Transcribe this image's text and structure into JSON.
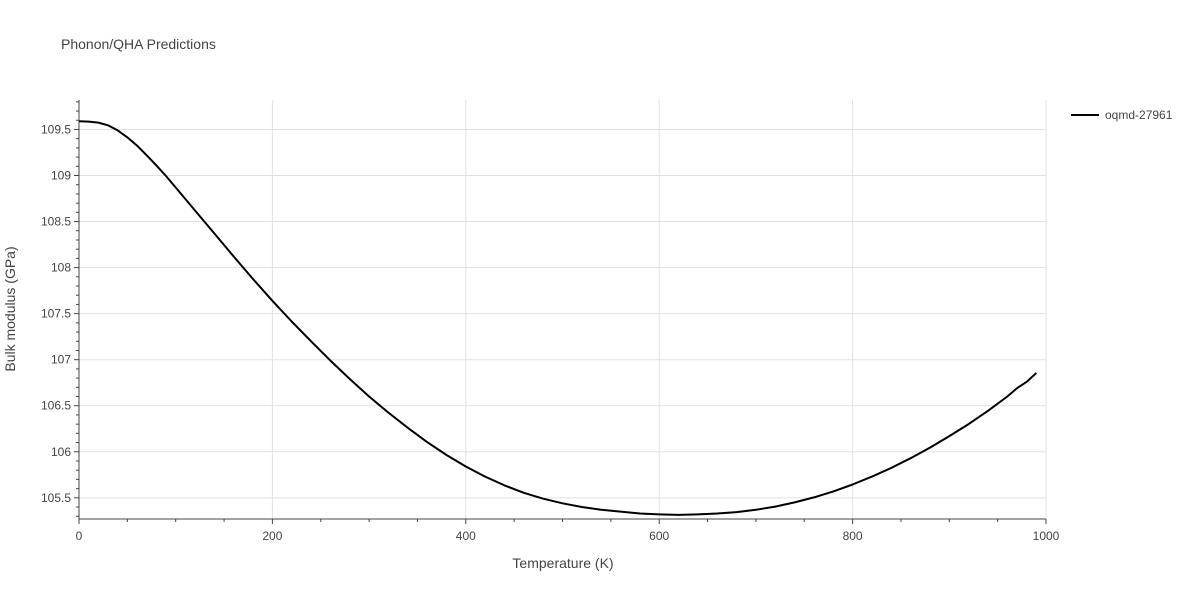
{
  "chart_data": {
    "type": "line",
    "title": "Phonon/QHA Predictions",
    "xlabel": "Temperature (K)",
    "ylabel": "Bulk modulus (GPa)",
    "xlim": [
      0,
      1000
    ],
    "ylim": [
      105.27,
      109.82
    ],
    "xticks": [
      0,
      200,
      400,
      600,
      800,
      1000
    ],
    "xtick_labels": [
      "0",
      "200",
      "400",
      "600",
      "800",
      "1000"
    ],
    "yticks": [
      105.5,
      106,
      106.5,
      107,
      107.5,
      108,
      108.5,
      109,
      109.5
    ],
    "ytick_labels": [
      "105.5",
      "106",
      "106.5",
      "107",
      "107.5",
      "108",
      "108.5",
      "109",
      "109.5"
    ],
    "grid": true,
    "legend_position": "top-right",
    "series": [
      {
        "name": "oqmd-27961",
        "color": "#000000",
        "x": [
          0,
          10,
          20,
          30,
          40,
          50,
          60,
          70,
          80,
          90,
          100,
          120,
          140,
          160,
          180,
          200,
          220,
          240,
          260,
          280,
          300,
          320,
          340,
          360,
          380,
          400,
          420,
          440,
          460,
          480,
          500,
          520,
          540,
          560,
          580,
          600,
          620,
          640,
          660,
          680,
          700,
          720,
          740,
          760,
          780,
          800,
          820,
          840,
          860,
          880,
          900,
          920,
          940,
          960,
          970,
          980,
          990
        ],
        "y": [
          109.59,
          109.585,
          109.575,
          109.545,
          109.49,
          109.415,
          109.325,
          109.22,
          109.11,
          108.995,
          108.87,
          108.62,
          108.37,
          108.12,
          107.875,
          107.64,
          107.415,
          107.2,
          106.99,
          106.79,
          106.6,
          106.425,
          106.26,
          106.105,
          105.965,
          105.84,
          105.73,
          105.635,
          105.555,
          105.49,
          105.44,
          105.4,
          105.37,
          105.35,
          105.33,
          105.32,
          105.315,
          105.32,
          105.33,
          105.345,
          105.37,
          105.405,
          105.45,
          105.505,
          105.57,
          105.645,
          105.73,
          105.825,
          105.93,
          106.045,
          106.17,
          106.3,
          106.445,
          106.6,
          106.69,
          106.76,
          106.855
        ]
      }
    ]
  }
}
